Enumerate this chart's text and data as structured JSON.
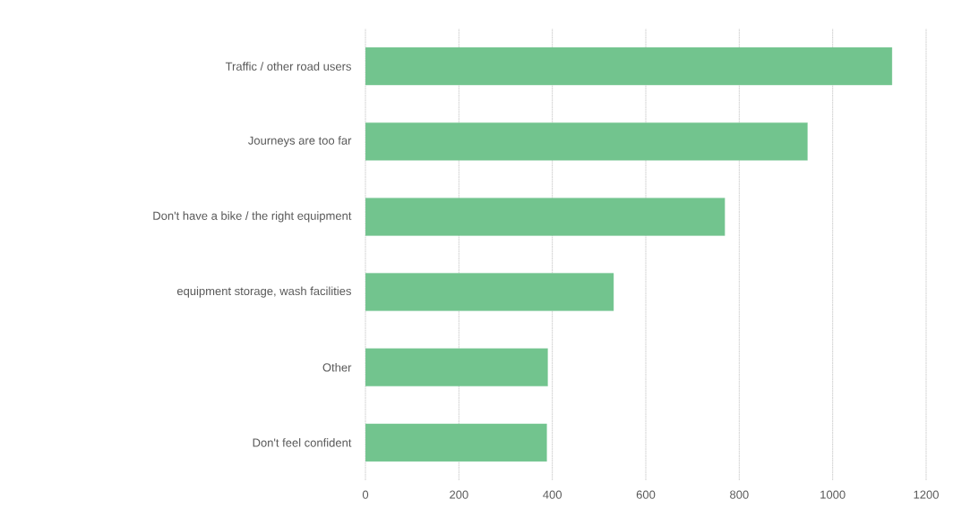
{
  "chart_data": {
    "type": "bar",
    "orientation": "horizontal",
    "categories": [
      "Traffic / other road users",
      "Journeys are too far",
      "Don't have a bike / the right equipment",
      "equipment storage, wash facilities",
      "Other",
      "Don't feel confident"
    ],
    "values": [
      1127,
      946,
      769,
      531,
      390,
      388
    ],
    "color": "#72c48e",
    "xlim": [
      0,
      1200
    ],
    "xticks": [
      0,
      200,
      400,
      600,
      800,
      1000,
      1200
    ],
    "grid": "x"
  }
}
